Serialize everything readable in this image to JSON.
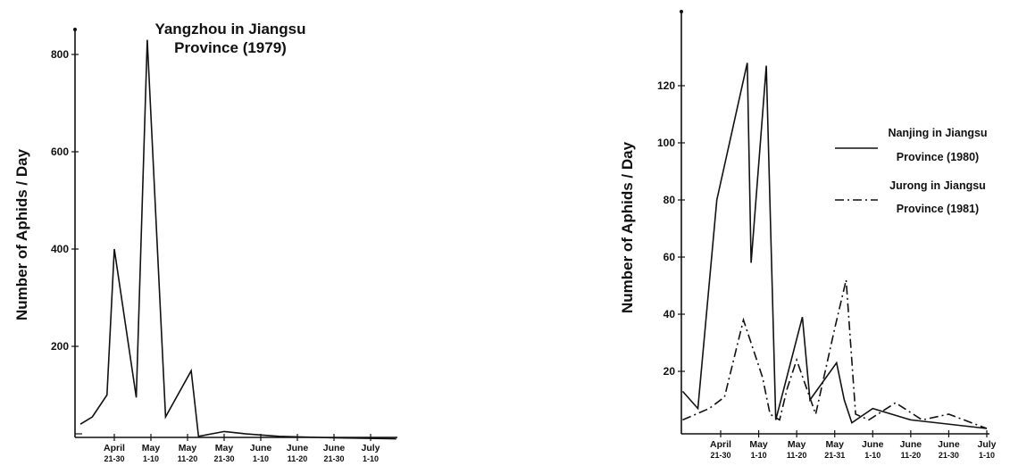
{
  "chart_data": [
    {
      "type": "line",
      "title_lines": [
        "Yangzhou in Jiangsu",
        "Province (1979)"
      ],
      "ylabel": "Number of Aphids / Day",
      "xlabel": "",
      "ylim": [
        0,
        880
      ],
      "yticks": [
        200,
        400,
        600,
        800
      ],
      "x_categories": [
        {
          "month": "April",
          "range": "21-30"
        },
        {
          "month": "May",
          "range": "1-10"
        },
        {
          "month": "May",
          "range": "11-20"
        },
        {
          "month": "May",
          "range": "21-30"
        },
        {
          "month": "June",
          "range": "1-10"
        },
        {
          "month": "June",
          "range": "11-20"
        },
        {
          "month": "June",
          "range": "21-30"
        },
        {
          "month": "July",
          "range": "1-10"
        }
      ],
      "series": [
        {
          "style": "solid",
          "x": [
            -1.0,
            -0.6,
            -0.2,
            0.0,
            0.6,
            0.9,
            1.4,
            2.1,
            2.3,
            3.0,
            3.6,
            4.5,
            6.0,
            7.7
          ],
          "y": [
            40,
            55,
            100,
            400,
            95,
            830,
            55,
            150,
            15,
            25,
            20,
            15,
            12,
            10
          ]
        }
      ]
    },
    {
      "type": "line",
      "title_lines": [],
      "ylabel": "Number of Aphids / Day",
      "xlabel": "",
      "ylim": [
        -2,
        147
      ],
      "yticks": [
        20,
        40,
        60,
        80,
        100,
        120
      ],
      "x_categories": [
        {
          "month": "April",
          "range": "21-30"
        },
        {
          "month": "May",
          "range": "1-10"
        },
        {
          "month": "May",
          "range": "11-20"
        },
        {
          "month": "May",
          "range": "21-31"
        },
        {
          "month": "June",
          "range": "1-10"
        },
        {
          "month": "June",
          "range": "11-20"
        },
        {
          "month": "June",
          "range": "21-30"
        },
        {
          "month": "July",
          "range": "1-10"
        }
      ],
      "legend": [
        {
          "style": "solid",
          "lines": [
            "Nanjing in Jiangsu",
            "Province (1980)"
          ]
        },
        {
          "style": "dashdot",
          "lines": [
            "Jurong in Jiangsu",
            "Province (1981)"
          ]
        }
      ],
      "series": [
        {
          "style": "solid",
          "x": [
            -1.0,
            -0.6,
            -0.1,
            0.7,
            0.8,
            1.2,
            1.45,
            2.15,
            2.35,
            3.05,
            3.25,
            3.45,
            4.0,
            5.0,
            7.0
          ],
          "y": [
            13,
            7,
            80,
            128,
            58,
            127,
            3,
            39,
            10,
            23,
            10,
            2,
            7,
            3,
            0
          ]
        },
        {
          "style": "dashdot",
          "x": [
            -1.0,
            -0.3,
            0.1,
            0.6,
            1.1,
            1.3,
            1.55,
            1.75,
            2.0,
            2.5,
            3.0,
            3.3,
            3.55,
            3.9,
            4.6,
            5.3,
            6.0,
            7.0
          ],
          "y": [
            3,
            7,
            11,
            38,
            18,
            5,
            3,
            14,
            24,
            5,
            35,
            52,
            5,
            3,
            9,
            3,
            5,
            0
          ]
        }
      ]
    }
  ]
}
